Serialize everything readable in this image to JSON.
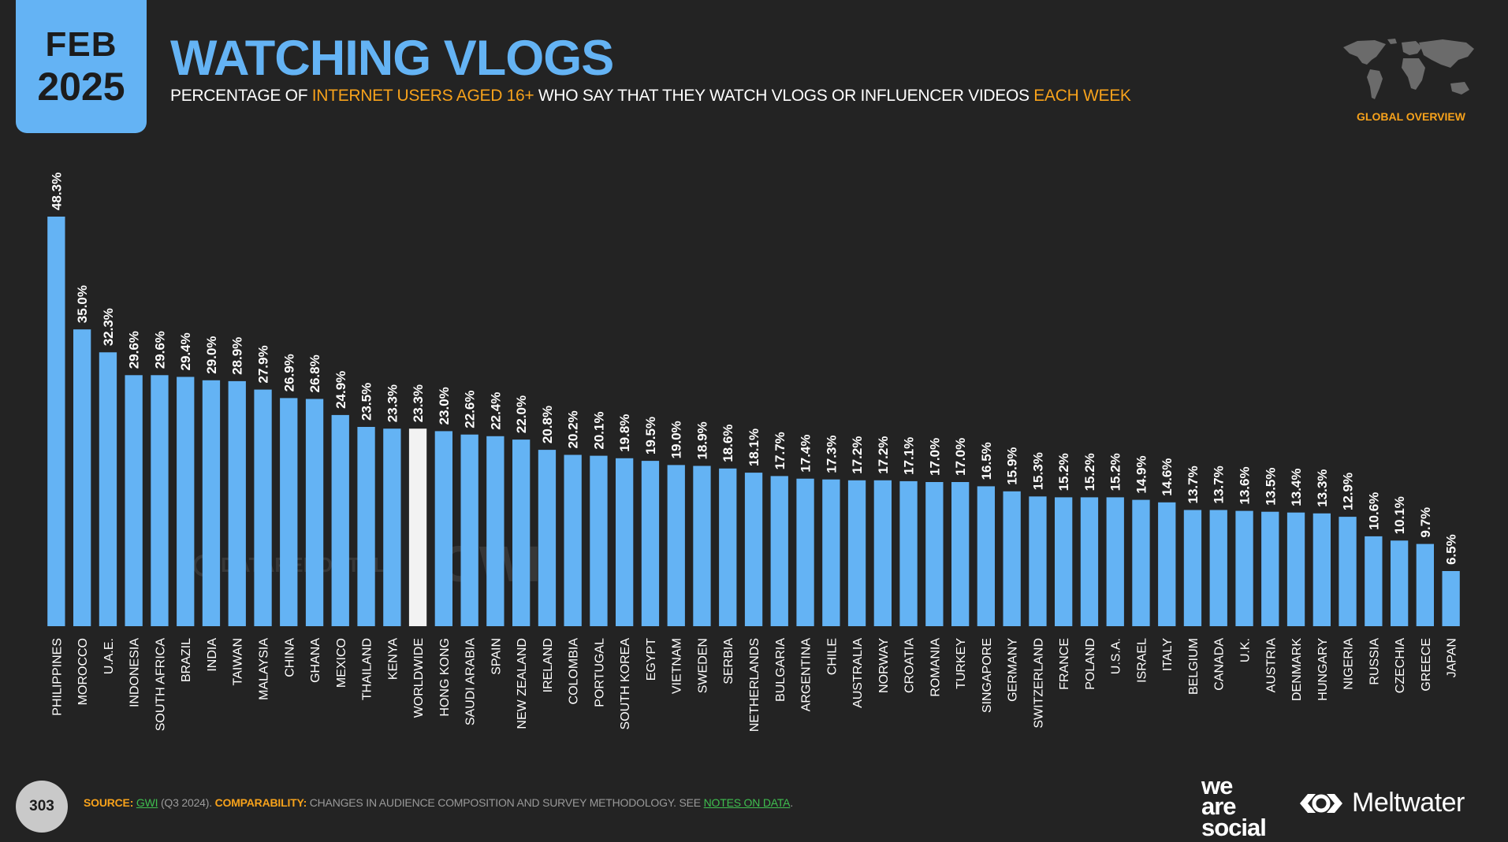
{
  "header": {
    "month": "FEB",
    "year": "2025",
    "title": "WATCHING VLOGS",
    "subtitle_parts": [
      "PERCENTAGE OF ",
      "INTERNET USERS AGED 16+",
      " WHO SAY THAT THEY WATCH VLOGS OR INFLUENCER VIDEOS ",
      "EACH WEEK"
    ],
    "global_overview": "GLOBAL OVERVIEW"
  },
  "footer": {
    "page_number": "303",
    "source_label": "SOURCE:",
    "source_value": "GWI",
    "source_period": " (Q3 2024). ",
    "comparability_label": "COMPARABILITY:",
    "comparability_text": " CHANGES IN AUDIENCE COMPOSITION AND SURVEY METHODOLOGY. SEE ",
    "notes_link": "NOTES ON DATA",
    "end": "."
  },
  "brands": {
    "was_line1": "we",
    "was_line2": "are",
    "was_line3": "social",
    "meltwater": "Meltwater"
  },
  "watermarks": {
    "datareportal": "DATAREPORTAL",
    "gwi": "GWI."
  },
  "colors": {
    "background": "#232323",
    "accent": "#64b3f4",
    "highlight_bar": "#f2f2f2",
    "orange": "#f7a21b"
  },
  "chart_data": {
    "type": "bar",
    "categories": [
      "PHILIPPINES",
      "MOROCCO",
      "U.A.E.",
      "INDONESIA",
      "SOUTH AFRICA",
      "BRAZIL",
      "INDIA",
      "TAIWAN",
      "MALAYSIA",
      "CHINA",
      "GHANA",
      "MEXICO",
      "THAILAND",
      "KENYA",
      "WORLDWIDE",
      "HONG KONG",
      "SAUDI ARABIA",
      "SPAIN",
      "NEW ZEALAND",
      "IRELAND",
      "COLOMBIA",
      "PORTUGAL",
      "SOUTH KOREA",
      "EGYPT",
      "VIETNAM",
      "SWEDEN",
      "SERBIA",
      "NETHERLANDS",
      "BULGARIA",
      "ARGENTINA",
      "CHILE",
      "AUSTRALIA",
      "NORWAY",
      "CROATIA",
      "ROMANIA",
      "TURKEY",
      "SINGAPORE",
      "GERMANY",
      "SWITZERLAND",
      "FRANCE",
      "POLAND",
      "U.S.A.",
      "ISRAEL",
      "ITALY",
      "BELGIUM",
      "CANADA",
      "U.K.",
      "AUSTRIA",
      "DENMARK",
      "HUNGARY",
      "NIGERIA",
      "RUSSIA",
      "CZECHIA",
      "GREECE",
      "JAPAN"
    ],
    "values": [
      48.3,
      35.0,
      32.3,
      29.6,
      29.6,
      29.4,
      29.0,
      28.9,
      27.9,
      26.9,
      26.8,
      24.9,
      23.5,
      23.3,
      23.3,
      23.0,
      22.6,
      22.4,
      22.0,
      20.8,
      20.2,
      20.1,
      19.8,
      19.5,
      19.0,
      18.9,
      18.6,
      18.1,
      17.7,
      17.4,
      17.3,
      17.2,
      17.2,
      17.1,
      17.0,
      17.0,
      16.5,
      15.9,
      15.3,
      15.2,
      15.2,
      15.2,
      14.9,
      14.6,
      13.7,
      13.7,
      13.6,
      13.5,
      13.4,
      13.3,
      12.9,
      10.6,
      10.1,
      9.7,
      6.5
    ],
    "value_labels": [
      "48.3%",
      "35.0%",
      "32.3%",
      "29.6%",
      "29.6%",
      "29.4%",
      "29.0%",
      "28.9%",
      "27.9%",
      "26.9%",
      "26.8%",
      "24.9%",
      "23.5%",
      "23.3%",
      "23.3%",
      "23.0%",
      "22.6%",
      "22.4%",
      "22.0%",
      "20.8%",
      "20.2%",
      "20.1%",
      "19.8%",
      "19.5%",
      "19.0%",
      "18.9%",
      "18.6%",
      "18.1%",
      "17.7%",
      "17.4%",
      "17.3%",
      "17.2%",
      "17.2%",
      "17.1%",
      "17.0%",
      "17.0%",
      "16.5%",
      "15.9%",
      "15.3%",
      "15.2%",
      "15.2%",
      "15.2%",
      "14.9%",
      "14.6%",
      "13.7%",
      "13.7%",
      "13.6%",
      "13.5%",
      "13.4%",
      "13.3%",
      "12.9%",
      "10.6%",
      "10.1%",
      "9.7%",
      "6.5%"
    ],
    "highlight_category": "WORLDWIDE",
    "ylim": [
      0,
      48.3
    ],
    "grid": false
  }
}
